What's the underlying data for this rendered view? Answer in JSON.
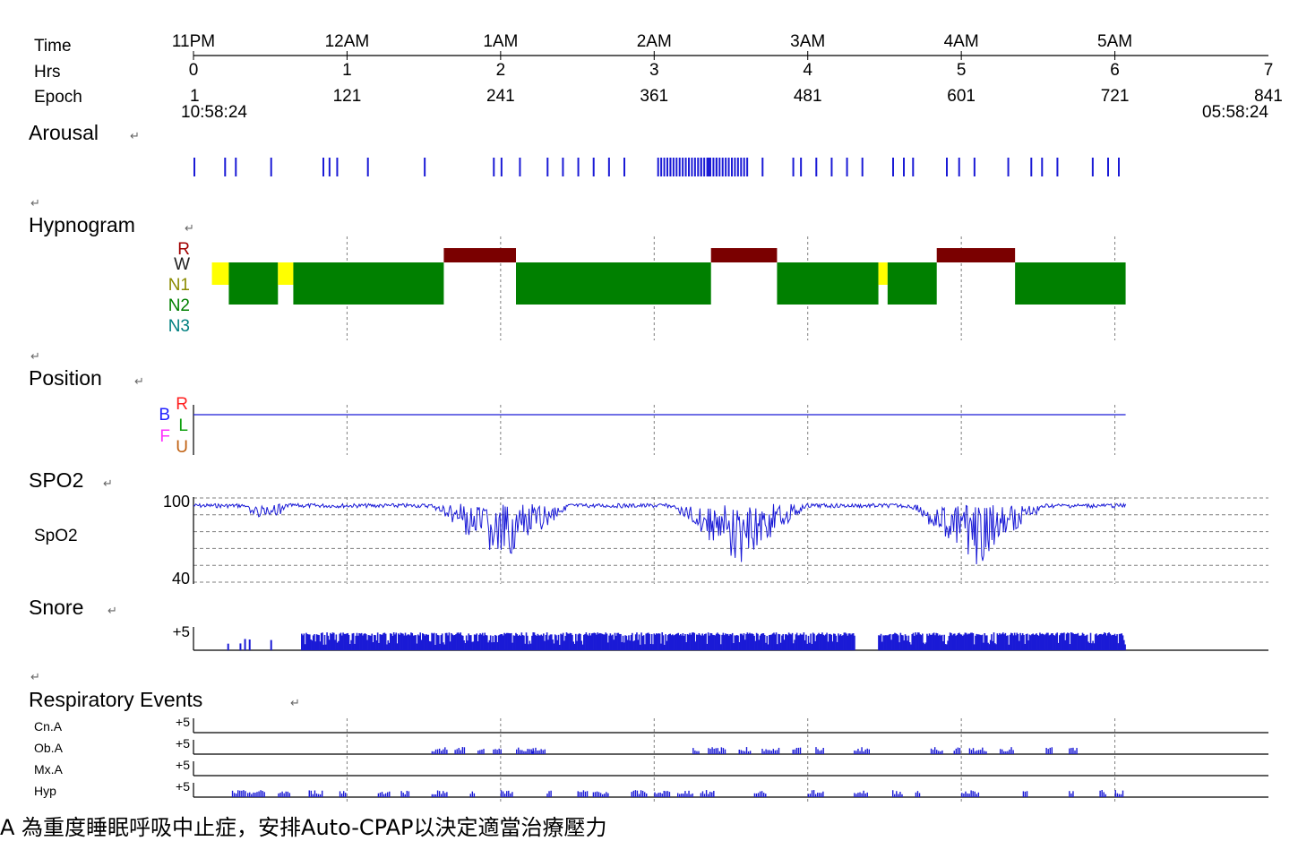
{
  "axis_header": {
    "rows": [
      "Time",
      "Hrs",
      "Epoch"
    ],
    "time_ticks": [
      "11PM",
      "12AM",
      "1AM",
      "2AM",
      "3AM",
      "4AM",
      "5AM"
    ],
    "hrs_ticks": [
      "0",
      "1",
      "2",
      "3",
      "4",
      "5",
      "6",
      "7"
    ],
    "epoch_ticks": [
      "1",
      "121",
      "241",
      "361",
      "481",
      "601",
      "721",
      "841"
    ],
    "start_clock": "10:58:24",
    "end_clock": "05:58:24"
  },
  "sections": {
    "arousal": "Arousal",
    "hypnogram": "Hypnogram",
    "position": "Position",
    "spo2": "SPO2",
    "snore": "Snore",
    "respiratory": "Respiratory Events"
  },
  "return_mark": "↵",
  "hypnogram_labels": [
    "R",
    "W",
    "N1",
    "N2",
    "N3"
  ],
  "position_labels": [
    "R",
    "B",
    "L",
    "F",
    "U"
  ],
  "spo2_channel_label": "SpO2",
  "spo2_max_label": "100",
  "spo2_min_label": "40",
  "snore_scale_label": "+5",
  "resp_channels": [
    "Cn.A",
    "Ob.A",
    "Mx.A",
    "Hyp"
  ],
  "resp_scale_label": "+5",
  "caption": "A 為重度睡眠呼吸中止症，安排Auto-CPAP以決定適當治療壓力",
  "colors": {
    "series": "#1a1ad6",
    "rem": "#7a0000",
    "n2": "#008000",
    "n1": "#ffff00",
    "grid": "#7f7f7f"
  },
  "chart_data": {
    "type": "line",
    "x_unit": "hours from 10:58:24",
    "xlim": [
      0,
      7
    ],
    "hypnogram": {
      "stages": [
        "R",
        "W",
        "N1",
        "N2",
        "N3"
      ],
      "segments": [
        {
          "stage": "N1",
          "start": 0.12,
          "end": 0.23
        },
        {
          "stage": "N2",
          "start": 0.23,
          "end": 0.55
        },
        {
          "stage": "N1",
          "start": 0.55,
          "end": 0.65
        },
        {
          "stage": "N2",
          "start": 0.65,
          "end": 1.63
        },
        {
          "stage": "R",
          "start": 1.63,
          "end": 2.1
        },
        {
          "stage": "N2",
          "start": 2.1,
          "end": 3.37
        },
        {
          "stage": "R",
          "start": 3.37,
          "end": 3.8
        },
        {
          "stage": "N2",
          "start": 3.8,
          "end": 4.46
        },
        {
          "stage": "N1",
          "start": 4.46,
          "end": 4.52
        },
        {
          "stage": "N2",
          "start": 4.52,
          "end": 4.84
        },
        {
          "stage": "R",
          "start": 4.84,
          "end": 5.35
        },
        {
          "stage": "N2",
          "start": 5.35,
          "end": 6.07
        }
      ]
    },
    "position": {
      "value": "B",
      "start": 0,
      "end": 6.07
    },
    "spo2": {
      "ylim": [
        40,
        100
      ],
      "baseline": 96,
      "desaturation_hours": [
        2.0,
        3.55,
        5.1
      ],
      "lowest": 42
    },
    "snore": {
      "ymax": 5,
      "start": 0.7,
      "end": 6.07
    },
    "arousal_hours": [
      0.0,
      0.2,
      0.27,
      0.5,
      0.84,
      0.88,
      0.93,
      1.13,
      1.5,
      1.95,
      2.0,
      2.12,
      2.3,
      2.4,
      2.5,
      2.6,
      2.7,
      2.8,
      3.1,
      3.3,
      3.35,
      3.4,
      3.7,
      3.9,
      3.95,
      4.05,
      4.15,
      4.25,
      4.35,
      4.55,
      4.62,
      4.68,
      4.9,
      4.98,
      5.08,
      5.3,
      5.45,
      5.52,
      5.62,
      5.85,
      5.95,
      6.02
    ],
    "respiratory_events": [
      {
        "name": "Cn.A",
        "hours": []
      },
      {
        "name": "Ob.A",
        "hours": [
          1.55,
          1.7,
          1.85,
          1.95,
          2.1,
          2.2,
          3.25,
          3.35,
          3.55,
          3.7,
          3.9,
          4.05,
          4.3,
          4.8,
          4.95,
          5.05,
          5.25,
          5.55,
          5.7
        ]
      },
      {
        "name": "Mx.A",
        "hours": []
      },
      {
        "name": "Hyp",
        "hours": [
          0.25,
          0.35,
          0.55,
          0.75,
          0.95,
          1.2,
          1.35,
          1.55,
          1.8,
          2.0,
          2.3,
          2.5,
          2.6,
          2.85,
          3.0,
          3.15,
          3.3,
          3.65,
          4.0,
          4.3,
          4.55,
          4.7,
          5.0,
          5.4,
          5.7,
          5.9,
          6.0
        ]
      }
    ]
  }
}
